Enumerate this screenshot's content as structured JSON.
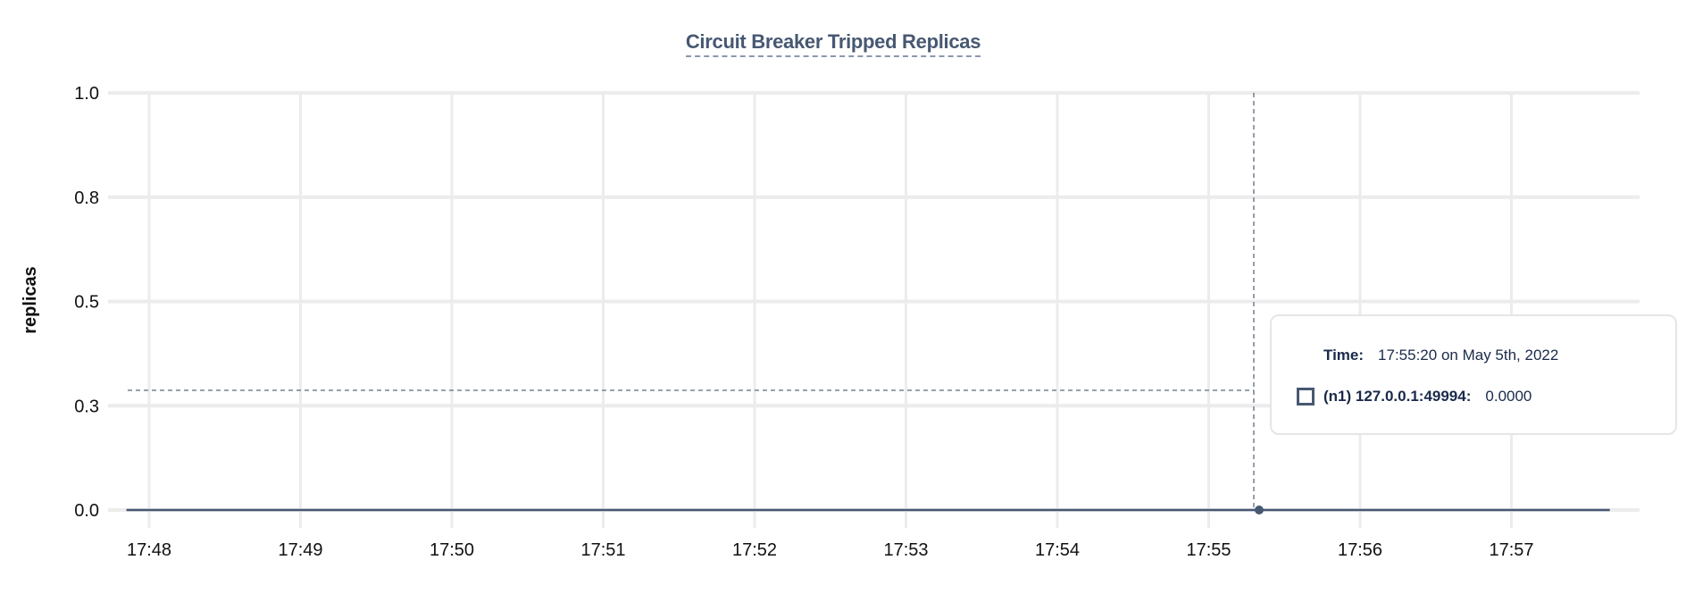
{
  "chart_data": {
    "type": "line",
    "title": "Circuit Breaker Tripped Replicas",
    "ylabel": "replicas",
    "xlabel": "",
    "x_ticks": [
      "17:48",
      "17:49",
      "17:50",
      "17:51",
      "17:52",
      "17:53",
      "17:54",
      "17:55",
      "17:56",
      "17:57"
    ],
    "y_ticks": [
      "0.0",
      "0.3",
      "0.5",
      "0.8",
      "1.0"
    ],
    "ylim": [
      0,
      1
    ],
    "grid": true,
    "series": [
      {
        "name": "(n1) 127.0.0.1:49994",
        "color": "#475872",
        "x": [
          "17:47:51",
          "17:57:39"
        ],
        "values": [
          0,
          0
        ]
      }
    ],
    "hover": {
      "time": "17:55:20",
      "value": 0
    }
  },
  "tooltip": {
    "time_label": "Time:",
    "time_value": "17:55:20 on May 5th, 2022",
    "series_label": "(n1) 127.0.0.1:49994:",
    "series_value": "0.0000"
  }
}
